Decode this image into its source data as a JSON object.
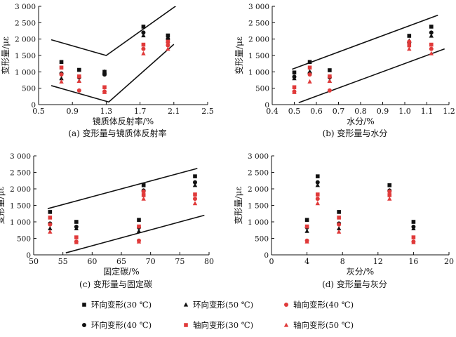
{
  "chart_data": [
    {
      "id": "a",
      "type": "scatter",
      "caption": "(a) 变形量与镜质体反射率",
      "xlabel": "镜质体反射率/%",
      "ylabel": "变形量/με",
      "xlim": [
        0.5,
        2.5
      ],
      "ylim": [
        0,
        3000
      ],
      "xticks": [
        0.5,
        0.9,
        1.3,
        1.7,
        2.1,
        2.5
      ],
      "xtick_labels": [
        "0.5",
        "0.9",
        "1.3",
        "1.7",
        "2.1",
        "2.5"
      ],
      "yticks": [
        0,
        500,
        1000,
        1500,
        2000,
        2500,
        3000
      ],
      "ytick_labels": [
        "0",
        "500",
        "1 000",
        "1 500",
        "2 000",
        "2 500",
        "3 000"
      ],
      "grid": false,
      "series": [
        {
          "key": "hoop30",
          "x": [
            0.77,
            0.98,
            1.28,
            1.74,
            2.03
          ],
          "y": [
            1300,
            1060,
            1000,
            2380,
            2110
          ]
        },
        {
          "key": "hoop40",
          "x": [
            0.77,
            0.98,
            1.28,
            1.74,
            2.03
          ],
          "y": [
            950,
            830,
            920,
            2200,
            2000
          ]
        },
        {
          "key": "hoop50",
          "x": [
            0.77,
            0.98,
            1.28,
            1.74,
            2.03
          ],
          "y": [
            800,
            720,
            1010,
            2110,
            1950
          ]
        },
        {
          "key": "axial30",
          "x": [
            0.77,
            0.98,
            1.28,
            1.74,
            2.03
          ],
          "y": [
            1130,
            860,
            530,
            1830,
            1920
          ]
        },
        {
          "key": "axial40",
          "x": [
            0.77,
            0.98,
            1.28,
            1.74,
            2.03
          ],
          "y": [
            920,
            430,
            400,
            1700,
            1810
          ]
        },
        {
          "key": "axial50",
          "x": [
            0.77,
            0.98,
            1.28,
            1.74,
            2.03
          ],
          "y": [
            700,
            720,
            380,
            1560,
            1700
          ]
        }
      ],
      "bounds": [
        {
          "x": [
            0.65,
            1.3,
            2.2
          ],
          "y": [
            1980,
            1500,
            3150
          ]
        },
        {
          "x": [
            0.65,
            1.33,
            2.1
          ],
          "y": [
            580,
            80,
            1840
          ]
        }
      ]
    },
    {
      "id": "b",
      "type": "scatter",
      "caption": "(b) 变形量与水分",
      "xlabel": "水分/%",
      "ylabel": "变形量/με",
      "xlim": [
        0.4,
        1.2
      ],
      "ylim": [
        0,
        3000
      ],
      "xticks": [
        0.4,
        0.5,
        0.6,
        0.7,
        0.8,
        0.9,
        1.0,
        1.1,
        1.2
      ],
      "xtick_labels": [
        "0.4",
        "0.5",
        "0.6",
        "0.7",
        "0.8",
        "0.9",
        "1.0",
        "1.1",
        "1.2"
      ],
      "yticks": [
        0,
        500,
        1000,
        1500,
        2000,
        2500,
        3000
      ],
      "ytick_labels": [
        "0",
        "500",
        "1 000",
        "1 500",
        "2 000",
        "2 500",
        "3 000"
      ],
      "grid": false,
      "series": [
        {
          "key": "hoop30",
          "x": [
            0.5,
            0.57,
            0.66,
            1.02,
            1.12
          ],
          "y": [
            980,
            1300,
            1050,
            2100,
            2380
          ]
        },
        {
          "key": "hoop40",
          "x": [
            0.5,
            0.57,
            0.66,
            1.02,
            1.12
          ],
          "y": [
            850,
            960,
            830,
            1900,
            2200
          ]
        },
        {
          "key": "hoop50",
          "x": [
            0.5,
            0.57,
            0.66,
            1.02,
            1.12
          ],
          "y": [
            800,
            1010,
            720,
            1950,
            2100
          ]
        },
        {
          "key": "axial30",
          "x": [
            0.5,
            0.57,
            0.66,
            1.02,
            1.12
          ],
          "y": [
            530,
            1130,
            860,
            1810,
            1830
          ]
        },
        {
          "key": "axial40",
          "x": [
            0.5,
            0.57,
            0.66,
            1.02,
            1.12
          ],
          "y": [
            400,
            920,
            430,
            1920,
            1700
          ]
        },
        {
          "key": "axial50",
          "x": [
            0.5,
            0.57,
            0.66,
            1.02,
            1.12
          ],
          "y": [
            380,
            700,
            720,
            1700,
            1560
          ]
        }
      ],
      "bounds": [
        {
          "x": [
            0.49,
            1.15
          ],
          "y": [
            1080,
            2730
          ]
        },
        {
          "x": [
            0.52,
            1.18
          ],
          "y": [
            60,
            1700
          ]
        }
      ]
    },
    {
      "id": "c",
      "type": "scatter",
      "caption": "(c) 变形量与固定碳",
      "xlabel": "固定碳/%",
      "ylabel": "变形量/με",
      "xlim": [
        50,
        80
      ],
      "ylim": [
        0,
        3000
      ],
      "xticks": [
        50,
        55,
        60,
        65,
        70,
        75,
        80
      ],
      "xtick_labels": [
        "50",
        "55",
        "60",
        "65",
        "70",
        "75",
        "80"
      ],
      "yticks": [
        0,
        500,
        1000,
        1500,
        2000,
        2500,
        3000
      ],
      "ytick_labels": [
        "0",
        "500",
        "1 000",
        "1 500",
        "2 000",
        "2 500",
        "3 000"
      ],
      "grid": false,
      "series": [
        {
          "key": "hoop30",
          "x": [
            52.8,
            57.3,
            68.0,
            68.8,
            77.6
          ],
          "y": [
            1300,
            1000,
            1060,
            2110,
            2380
          ]
        },
        {
          "key": "hoop40",
          "x": [
            52.8,
            57.3,
            68.0,
            68.8,
            77.6
          ],
          "y": [
            950,
            850,
            830,
            1950,
            2200
          ]
        },
        {
          "key": "hoop50",
          "x": [
            52.8,
            57.3,
            68.0,
            68.8,
            77.6
          ],
          "y": [
            800,
            800,
            720,
            1950,
            2110
          ]
        },
        {
          "key": "axial30",
          "x": [
            52.8,
            57.3,
            68.0,
            68.8,
            77.6
          ],
          "y": [
            1130,
            530,
            860,
            1810,
            1830
          ]
        },
        {
          "key": "axial40",
          "x": [
            52.8,
            57.3,
            68.0,
            68.8,
            77.6
          ],
          "y": [
            920,
            400,
            430,
            1920,
            1700
          ]
        },
        {
          "key": "axial50",
          "x": [
            52.8,
            57.3,
            68.0,
            68.8,
            77.6
          ],
          "y": [
            700,
            380,
            400,
            1700,
            1560
          ]
        }
      ],
      "bounds": [
        {
          "x": [
            52.4,
            78.0
          ],
          "y": [
            1400,
            2620
          ]
        },
        {
          "x": [
            55.5,
            79.2
          ],
          "y": [
            60,
            1200
          ]
        }
      ]
    },
    {
      "id": "d",
      "type": "scatter",
      "caption": "(d) 变形量与灰分",
      "xlabel": "灰分/%",
      "ylabel": "变形量/με",
      "xlim": [
        0,
        20
      ],
      "ylim": [
        0,
        3000
      ],
      "xticks": [
        0,
        4,
        8,
        12,
        16,
        20
      ],
      "xtick_labels": [
        "0",
        "4",
        "8",
        "12",
        "16",
        "20"
      ],
      "yticks": [
        0,
        500,
        1000,
        1500,
        2000,
        2500,
        3000
      ],
      "ytick_labels": [
        "0",
        "500",
        "1 000",
        "1 500",
        "2 000",
        "2 500",
        "3 000"
      ],
      "grid": false,
      "series": [
        {
          "key": "hoop30",
          "x": [
            4.0,
            5.2,
            7.6,
            13.3,
            16.0
          ],
          "y": [
            1060,
            2380,
            1300,
            2110,
            1000
          ]
        },
        {
          "key": "hoop40",
          "x": [
            4.0,
            5.2,
            7.6,
            13.3,
            16.0
          ],
          "y": [
            830,
            2200,
            950,
            1950,
            850
          ]
        },
        {
          "key": "hoop50",
          "x": [
            4.0,
            5.2,
            7.6,
            13.3,
            16.0
          ],
          "y": [
            720,
            2110,
            800,
            1950,
            800
          ]
        },
        {
          "key": "axial30",
          "x": [
            4.0,
            5.2,
            7.6,
            13.3,
            16.0
          ],
          "y": [
            860,
            1830,
            1130,
            1810,
            530
          ]
        },
        {
          "key": "axial40",
          "x": [
            4.0,
            5.2,
            7.6,
            13.3,
            16.0
          ],
          "y": [
            430,
            1700,
            920,
            1920,
            400
          ]
        },
        {
          "key": "axial50",
          "x": [
            4.0,
            5.2,
            7.6,
            13.3,
            16.0
          ],
          "y": [
            400,
            1560,
            700,
            1700,
            380
          ]
        }
      ],
      "bounds": []
    }
  ],
  "legend": [
    {
      "key": "hoop30",
      "label": "环向变形(30 ℃)",
      "marker": "square",
      "color": "#111111"
    },
    {
      "key": "hoop50",
      "label": "环向变形(50 ℃)",
      "marker": "triangle",
      "color": "#111111"
    },
    {
      "key": "axial40",
      "label": "轴向变形(40 ℃)",
      "marker": "circle",
      "color": "#e03a3a"
    },
    {
      "key": "hoop40",
      "label": "环向变形(40 ℃)",
      "marker": "circle",
      "color": "#111111"
    },
    {
      "key": "axial30",
      "label": "轴向变形(30 ℃)",
      "marker": "square",
      "color": "#e03a3a"
    },
    {
      "key": "axial50",
      "label": "轴向变形(50 ℃)",
      "marker": "triangle",
      "color": "#e03a3a"
    }
  ],
  "legend_placement": "bottom"
}
